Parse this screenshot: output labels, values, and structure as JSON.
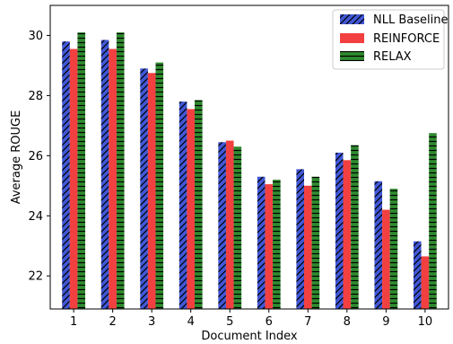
{
  "chart_data": {
    "type": "bar",
    "xlabel": "Document Index",
    "ylabel": "Average ROUGE",
    "categories": [
      "1",
      "2",
      "3",
      "4",
      "5",
      "6",
      "7",
      "8",
      "9",
      "10"
    ],
    "ylim": [
      20.9,
      31.0
    ],
    "yticks": [
      "22",
      "24",
      "26",
      "28",
      "30"
    ],
    "legend_position": "top-right",
    "grid": false,
    "series": [
      {
        "name": "NLL Baseline",
        "color": "#4057d6",
        "hatch": "diagonal",
        "values": [
          29.8,
          29.85,
          28.9,
          27.8,
          26.45,
          25.3,
          25.55,
          26.1,
          25.15,
          23.15
        ]
      },
      {
        "name": "REINFORCE",
        "color": "#f24040",
        "hatch": "none",
        "values": [
          29.55,
          29.55,
          28.75,
          27.55,
          26.5,
          25.05,
          25.0,
          25.85,
          24.2,
          22.65
        ]
      },
      {
        "name": "RELAX",
        "color": "#2e8a2e",
        "hatch": "horizontal",
        "values": [
          30.1,
          30.1,
          29.1,
          27.85,
          26.3,
          25.2,
          25.3,
          26.35,
          24.9,
          26.75
        ]
      }
    ]
  }
}
